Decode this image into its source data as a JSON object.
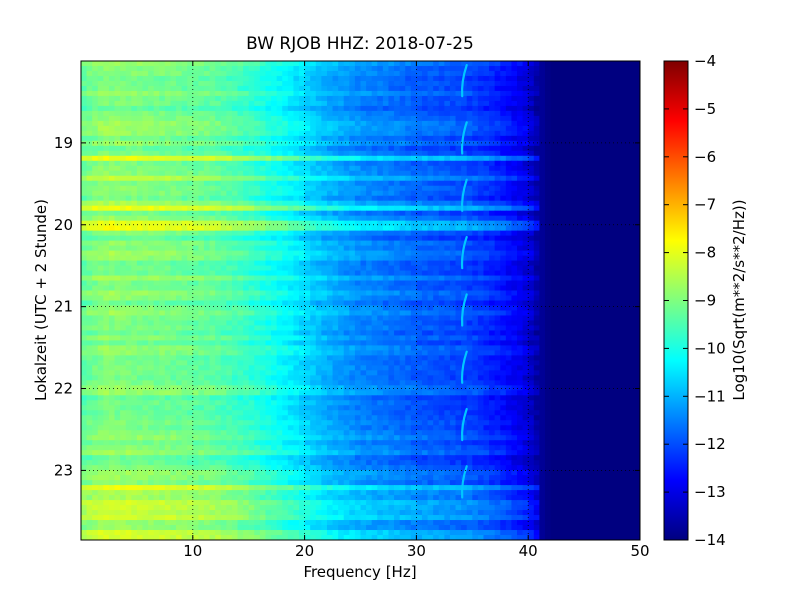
{
  "chart_data": {
    "type": "heatmap",
    "title": "BW RJOB HHZ: 2018-07-25",
    "xlabel": "Frequency [Hz]",
    "ylabel": "Lokalzeit (UTC + 2 Stunde)",
    "xlim": [
      0,
      50
    ],
    "ylim": [
      18.0,
      23.85
    ],
    "y_inverted": true,
    "x_ticks": [
      "10",
      "20",
      "30",
      "40",
      "50"
    ],
    "x_tick_values": [
      10,
      20,
      30,
      40,
      50
    ],
    "y_ticks": [
      "19",
      "20",
      "21",
      "22",
      "23"
    ],
    "y_tick_values": [
      19,
      20,
      21,
      22,
      23
    ],
    "grid": true,
    "colorbar": {
      "label": "Log10(Sqrt(m**2/s**2/Hz))",
      "range": [
        -14,
        -4
      ],
      "ticks": [
        "−4",
        "−5",
        "−6",
        "−7",
        "−8",
        "−9",
        "−10",
        "−11",
        "−12",
        "−13",
        "−14"
      ],
      "tick_values": [
        -4,
        -5,
        -6,
        -7,
        -8,
        -9,
        -10,
        -11,
        -12,
        -13,
        -14
      ],
      "colormap": "jet"
    },
    "spectrum_profile": {
      "frequency_hz": [
        0,
        2,
        5,
        8,
        10,
        12,
        15,
        18,
        20,
        22,
        25,
        28,
        30,
        32,
        35,
        38,
        40,
        41,
        42,
        45,
        50
      ],
      "log10_amplitude": [
        -9.3,
        -8.9,
        -9.0,
        -9.1,
        -9.2,
        -9.3,
        -9.7,
        -10.2,
        -10.6,
        -11.0,
        -11.4,
        -11.6,
        -11.8,
        -11.9,
        -12.1,
        -12.6,
        -13.1,
        -13.7,
        -14,
        -14,
        -14
      ]
    },
    "spectral_line": {
      "frequency_hz": 34.3,
      "log10_amplitude": -10.8,
      "bursts_local_hour": [
        18.05,
        18.75,
        19.45,
        20.15,
        20.85,
        21.55,
        22.25,
        22.95
      ]
    }
  }
}
